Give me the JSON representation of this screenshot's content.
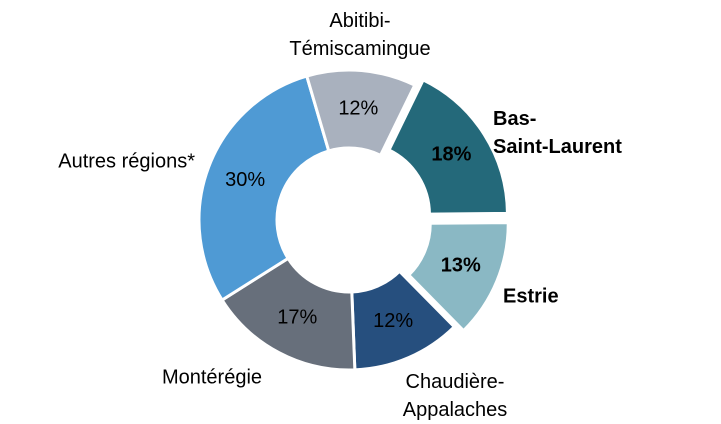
{
  "chart_data": {
    "type": "donut",
    "categories": [
      "Bas-Saint-Laurent",
      "Estrie",
      "Chaudière-Appalaches",
      "Montérégie",
      "Autres régions*",
      "Abitibi-Témiscamingue"
    ],
    "values": [
      18,
      13,
      12,
      17,
      30,
      12
    ],
    "value_labels": [
      "18%",
      "13%",
      "12%",
      "17%",
      "30%",
      "12%"
    ],
    "colors": [
      "#24697a",
      "#8ab8c4",
      "#264f7e",
      "#676f7b",
      "#4f9ad4",
      "#a9b1be"
    ],
    "exploded": [
      true,
      true,
      false,
      false,
      false,
      false
    ]
  }
}
